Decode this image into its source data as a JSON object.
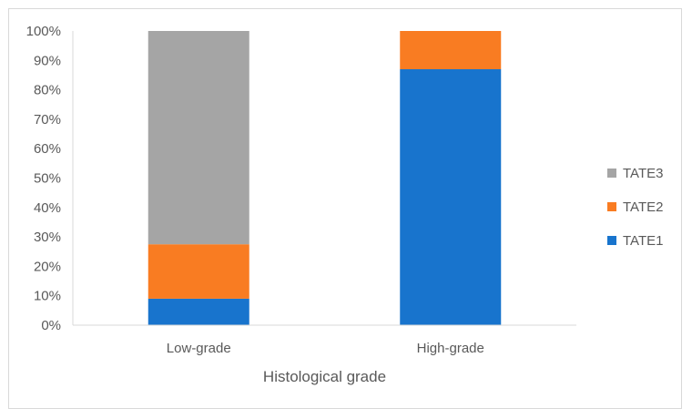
{
  "chart_data": {
    "type": "bar",
    "stacked": true,
    "percent": true,
    "title": "",
    "xlabel": "Histological grade",
    "ylabel": "",
    "categories": [
      "Low-grade",
      "High-grade"
    ],
    "ylim": [
      0,
      100
    ],
    "yticks": [
      "0%",
      "10%",
      "20%",
      "30%",
      "40%",
      "50%",
      "60%",
      "70%",
      "80%",
      "90%",
      "100%"
    ],
    "series": [
      {
        "name": "TATE1",
        "color": "#1874cd",
        "values": [
          9,
          87
        ]
      },
      {
        "name": "TATE2",
        "color": "#f97c22",
        "values": [
          18.5,
          13
        ]
      },
      {
        "name": "TATE3",
        "color": "#a5a5a5",
        "values": [
          72.5,
          0
        ]
      }
    ],
    "legend_order": [
      "TATE3",
      "TATE2",
      "TATE1"
    ],
    "legend_position": "right",
    "grid": false
  }
}
